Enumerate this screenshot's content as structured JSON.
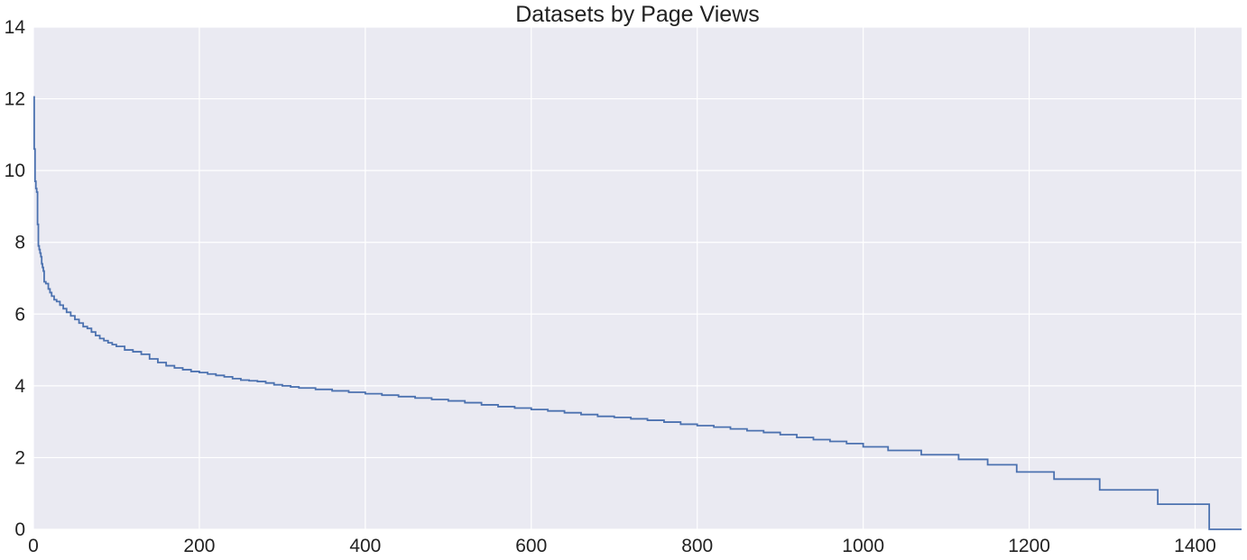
{
  "chart_data": {
    "type": "line",
    "title": "Datasets by Page Views",
    "xlabel": "",
    "ylabel": "",
    "xlim": [
      0,
      1456
    ],
    "ylim": [
      0,
      14
    ],
    "xticks": [
      0,
      200,
      400,
      600,
      800,
      1000,
      1200,
      1400
    ],
    "yticks": [
      0,
      2,
      4,
      6,
      8,
      10,
      12,
      14
    ],
    "grid": true,
    "colors": {
      "background": "#eaeaf2",
      "grid": "#ffffff",
      "line": "#4c72b0"
    },
    "series": [
      {
        "points": [
          [
            0,
            12.05
          ],
          [
            1,
            10.6
          ],
          [
            2,
            9.7
          ],
          [
            3,
            9.5
          ],
          [
            4,
            9.4
          ],
          [
            5,
            8.5
          ],
          [
            6,
            7.9
          ],
          [
            7,
            7.8
          ],
          [
            8,
            7.7
          ],
          [
            9,
            7.6
          ],
          [
            10,
            7.4
          ],
          [
            11,
            7.3
          ],
          [
            12,
            7.2
          ],
          [
            13,
            6.9
          ],
          [
            15,
            6.85
          ],
          [
            18,
            6.7
          ],
          [
            20,
            6.6
          ],
          [
            22,
            6.5
          ],
          [
            25,
            6.4
          ],
          [
            28,
            6.35
          ],
          [
            32,
            6.25
          ],
          [
            36,
            6.15
          ],
          [
            40,
            6.05
          ],
          [
            45,
            5.95
          ],
          [
            50,
            5.85
          ],
          [
            55,
            5.75
          ],
          [
            60,
            5.65
          ],
          [
            65,
            5.6
          ],
          [
            70,
            5.5
          ],
          [
            75,
            5.4
          ],
          [
            80,
            5.32
          ],
          [
            85,
            5.26
          ],
          [
            90,
            5.2
          ],
          [
            95,
            5.15
          ],
          [
            100,
            5.1
          ],
          [
            110,
            5.0
          ],
          [
            120,
            4.95
          ],
          [
            130,
            4.88
          ],
          [
            140,
            4.75
          ],
          [
            150,
            4.65
          ],
          [
            160,
            4.56
          ],
          [
            170,
            4.5
          ],
          [
            180,
            4.45
          ],
          [
            190,
            4.4
          ],
          [
            200,
            4.37
          ],
          [
            210,
            4.33
          ],
          [
            220,
            4.29
          ],
          [
            230,
            4.25
          ],
          [
            240,
            4.2
          ],
          [
            250,
            4.16
          ],
          [
            260,
            4.14
          ],
          [
            270,
            4.12
          ],
          [
            280,
            4.08
          ],
          [
            290,
            4.03
          ],
          [
            300,
            4.0
          ],
          [
            310,
            3.97
          ],
          [
            320,
            3.94
          ],
          [
            340,
            3.9
          ],
          [
            360,
            3.86
          ],
          [
            380,
            3.82
          ],
          [
            400,
            3.78
          ],
          [
            420,
            3.74
          ],
          [
            440,
            3.7
          ],
          [
            460,
            3.66
          ],
          [
            480,
            3.62
          ],
          [
            500,
            3.58
          ],
          [
            520,
            3.53
          ],
          [
            540,
            3.47
          ],
          [
            560,
            3.42
          ],
          [
            580,
            3.38
          ],
          [
            600,
            3.34
          ],
          [
            620,
            3.3
          ],
          [
            640,
            3.25
          ],
          [
            660,
            3.2
          ],
          [
            680,
            3.15
          ],
          [
            700,
            3.12
          ],
          [
            720,
            3.08
          ],
          [
            740,
            3.04
          ],
          [
            760,
            2.99
          ],
          [
            780,
            2.93
          ],
          [
            800,
            2.89
          ],
          [
            820,
            2.85
          ],
          [
            840,
            2.8
          ],
          [
            860,
            2.75
          ],
          [
            880,
            2.7
          ],
          [
            900,
            2.64
          ],
          [
            920,
            2.56
          ],
          [
            940,
            2.5
          ],
          [
            960,
            2.45
          ],
          [
            980,
            2.39
          ],
          [
            1000,
            2.3
          ],
          [
            1030,
            2.2
          ],
          [
            1070,
            2.08
          ],
          [
            1115,
            1.95
          ],
          [
            1150,
            1.8
          ],
          [
            1185,
            1.6
          ],
          [
            1230,
            1.4
          ],
          [
            1285,
            1.1
          ],
          [
            1355,
            0.7
          ],
          [
            1417,
            0.0
          ],
          [
            1456,
            0.0
          ]
        ]
      }
    ]
  }
}
